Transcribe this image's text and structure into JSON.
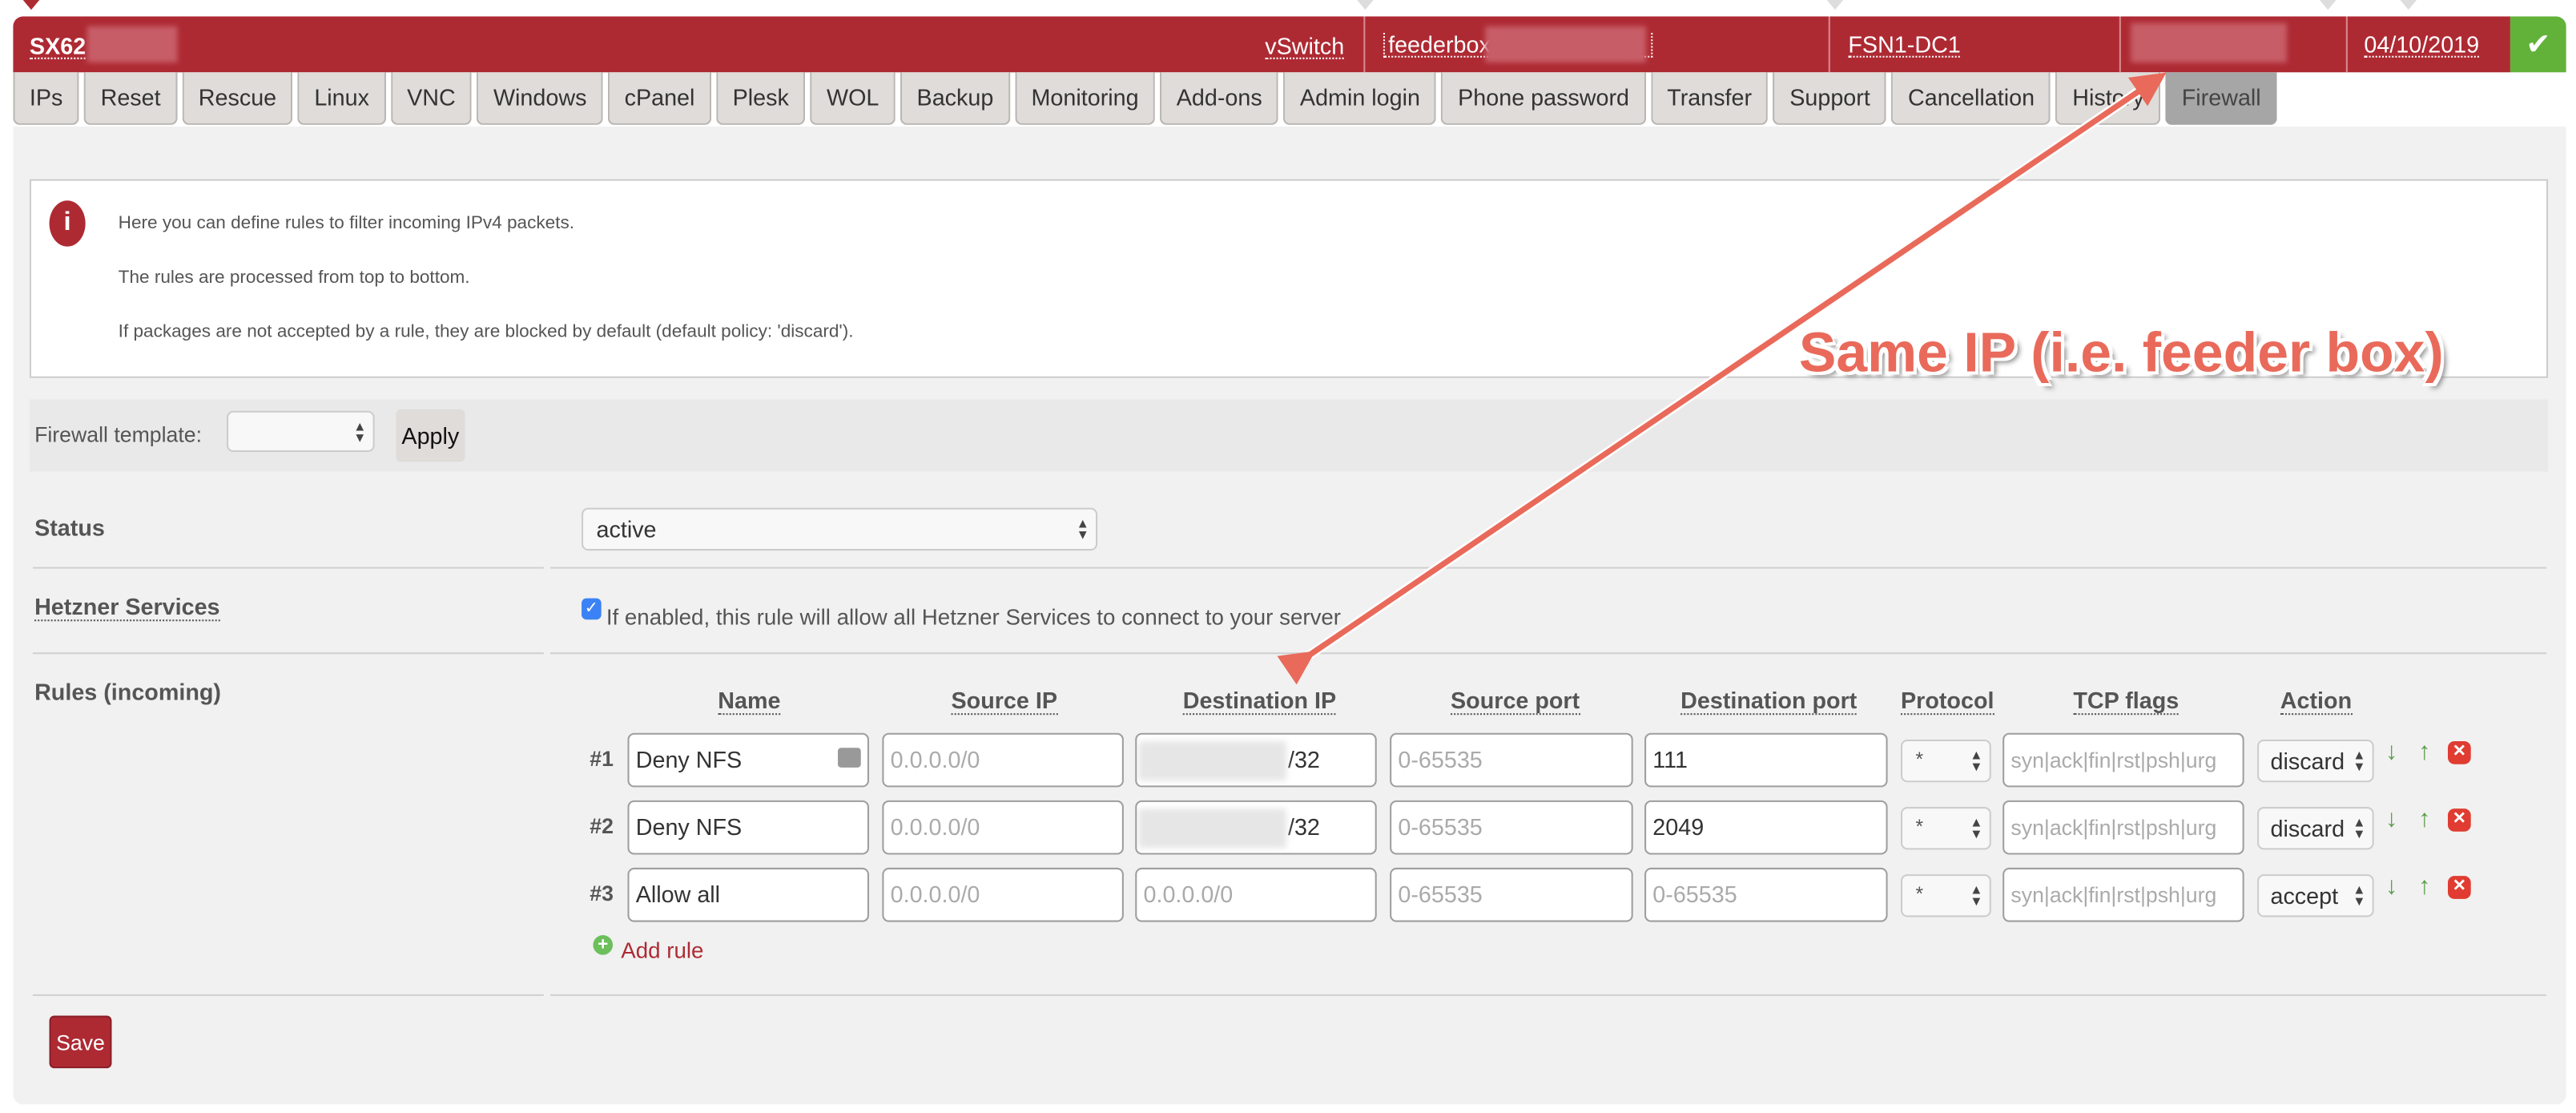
{
  "header": {
    "server_name": "SX62",
    "vswitch": "vSwitch",
    "hostname": "feederbox",
    "datacenter": "FSN1-DC1",
    "date": "04/10/2019",
    "status_icon": "checkmark-icon",
    "colors": {
      "brand": "#ae2a33",
      "ok": "#62b23a"
    }
  },
  "tabs": [
    "IPs",
    "Reset",
    "Rescue",
    "Linux",
    "VNC",
    "Windows",
    "cPanel",
    "Plesk",
    "WOL",
    "Backup",
    "Monitoring",
    "Add-ons",
    "Admin login",
    "Phone password",
    "Transfer",
    "Support",
    "Cancellation",
    "History",
    "Firewall"
  ],
  "active_tab": "Firewall",
  "info": {
    "lines": [
      "Here you can define rules to filter incoming IPv4 packets.",
      "The rules are processed from top to bottom.",
      "If packages are not accepted by a rule, they are blocked by default (default policy: 'discard')."
    ]
  },
  "template": {
    "label": "Firewall template:",
    "value": "",
    "apply": "Apply"
  },
  "status": {
    "label": "Status",
    "value": "active"
  },
  "hetzner": {
    "label": "Hetzner Services",
    "checked": true,
    "text": "If enabled, this rule will allow all Hetzner Services to connect to your server"
  },
  "rules": {
    "label": "Rules (incoming)",
    "columns": [
      "Name",
      "Source IP",
      "Destination IP",
      "Source port",
      "Destination port",
      "Protocol",
      "TCP flags",
      "Action"
    ],
    "rows": [
      {
        "num": "#1",
        "name": "Deny NFS",
        "src_ip_ph": "0.0.0.0/0",
        "dst_ip": "/32",
        "src_port_ph": "0-65535",
        "dst_port": "111",
        "protocol": "*",
        "tcp_ph": "syn|ack|fin|rst|psh|urg",
        "action": "discard"
      },
      {
        "num": "#2",
        "name": "Deny NFS",
        "src_ip_ph": "0.0.0.0/0",
        "dst_ip": "/32",
        "src_port_ph": "0-65535",
        "dst_port": "2049",
        "protocol": "*",
        "tcp_ph": "syn|ack|fin|rst|psh|urg",
        "action": "discard"
      },
      {
        "num": "#3",
        "name": "Allow all",
        "src_ip_ph": "0.0.0.0/0",
        "dst_ip_ph": "0.0.0.0/0",
        "src_port_ph": "0-65535",
        "dst_port_ph": "0-65535",
        "protocol": "*",
        "tcp_ph": "syn|ack|fin|rst|psh|urg",
        "action": "accept"
      }
    ],
    "add_rule": "Add rule"
  },
  "save": "Save",
  "annotation": {
    "text": "Same IP (i.e. feeder box)",
    "color": "#e96a5a"
  }
}
